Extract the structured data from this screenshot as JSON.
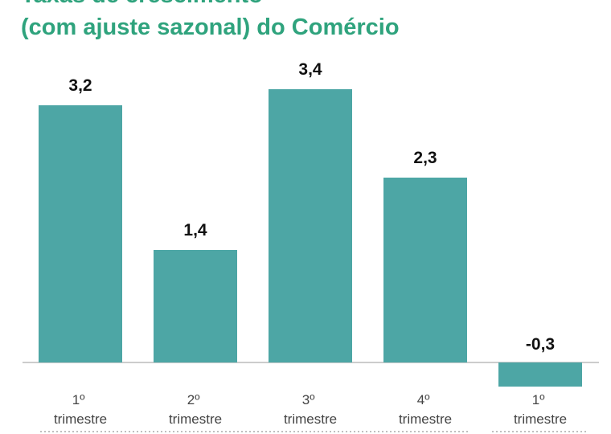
{
  "chart_data": {
    "type": "bar",
    "title": [
      "Taxas de crescimento",
      "(com ajuste sazonal) do Comércio"
    ],
    "categories": [
      "1º trimestre",
      "2º trimestre",
      "3º trimestre",
      "4º trimestre",
      "1º trimestre"
    ],
    "values": [
      3.2,
      1.4,
      3.4,
      2.3,
      -0.3
    ],
    "value_labels": [
      "3,2",
      "1,4",
      "3,4",
      "2,3",
      "-0,3"
    ],
    "color": "#4da6a5"
  }
}
